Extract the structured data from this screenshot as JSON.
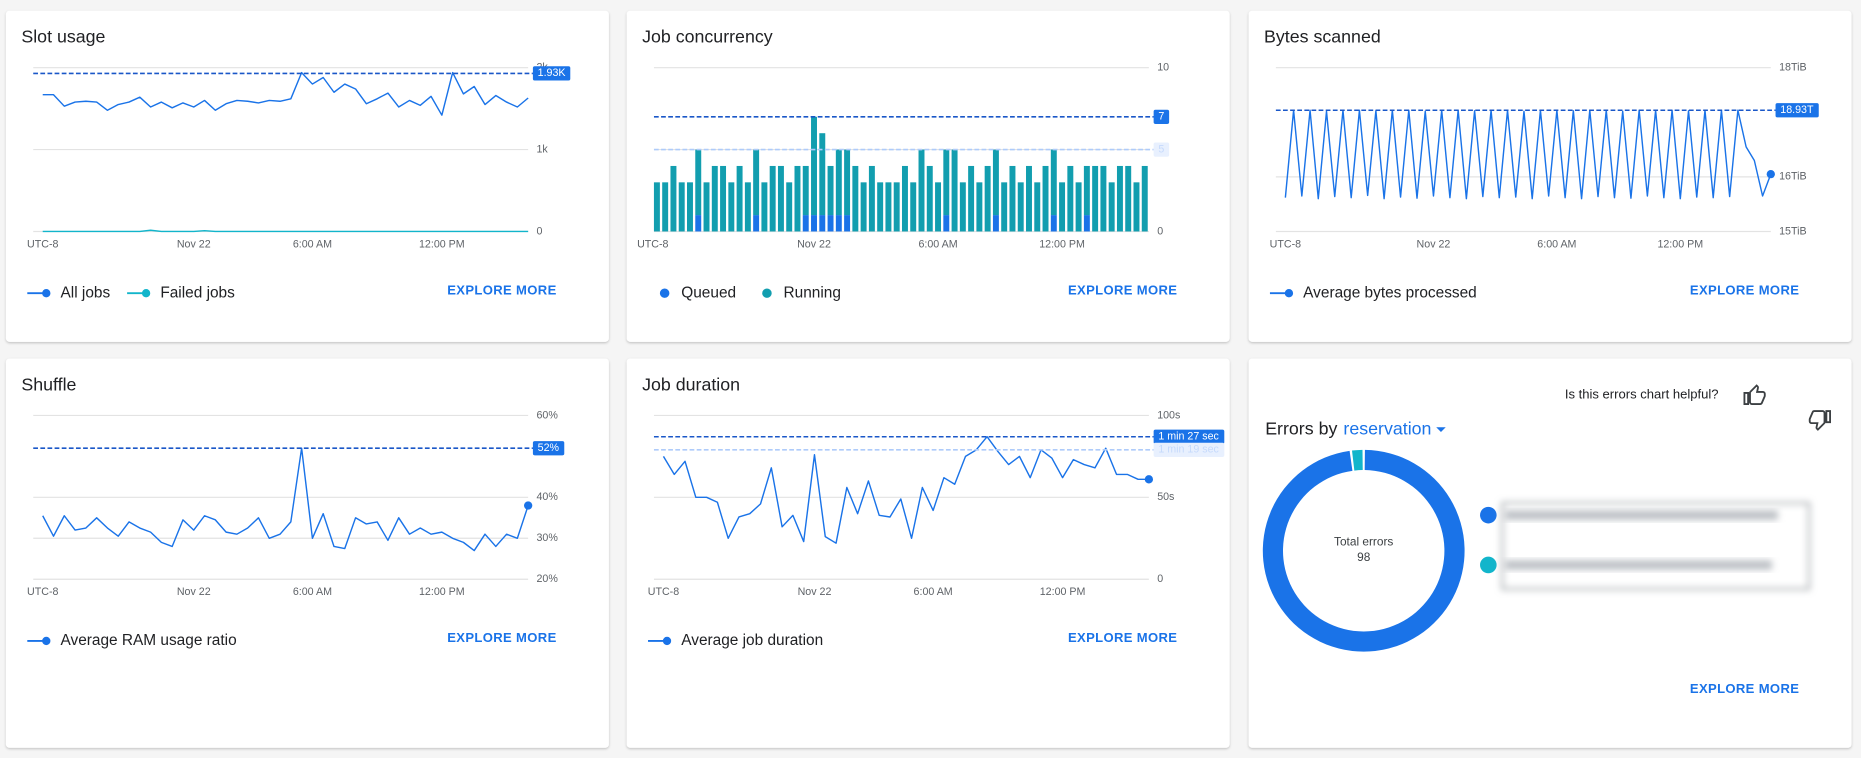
{
  "chart_data": [
    {
      "type": "line",
      "title": "Slot usage",
      "ylim": [
        0,
        2000
      ],
      "yticks": [
        0,
        {
          "value": 1000,
          "label": "1k"
        },
        {
          "value": 2000,
          "label": "2k"
        }
      ],
      "xlim": [
        0,
        45
      ],
      "xticks": [
        {
          "value": 0,
          "label": "UTC-8"
        },
        {
          "value": 14,
          "label": "Nov 22"
        },
        {
          "value": 25,
          "label": "6:00 AM"
        },
        {
          "value": 37,
          "label": "12:00 PM"
        }
      ],
      "grid": true,
      "references": [
        {
          "value": 1930,
          "label": "1.93K",
          "style": "dark"
        }
      ],
      "series": [
        {
          "name": "All jobs",
          "color": "#1a73e8",
          "values": [
            1670,
            1670,
            1530,
            1580,
            1590,
            1580,
            1480,
            1550,
            1580,
            1640,
            1520,
            1580,
            1510,
            1570,
            1520,
            1600,
            1480,
            1560,
            1600,
            1590,
            1570,
            1600,
            1590,
            1620,
            1940,
            1800,
            1880,
            1700,
            1800,
            1740,
            1560,
            1620,
            1690,
            1520,
            1600,
            1540,
            1650,
            1420,
            1940,
            1680,
            1770,
            1550,
            1660,
            1580,
            1520,
            1630
          ]
        },
        {
          "name": "Failed jobs",
          "color": "#12b5cb",
          "values": [
            0,
            0,
            0,
            0,
            0,
            0,
            0,
            0,
            0,
            0,
            15,
            0,
            0,
            0,
            0,
            10,
            0,
            0,
            0,
            0,
            0,
            0,
            0,
            0,
            0,
            0,
            0,
            0,
            0,
            0,
            0,
            0,
            0,
            0,
            0,
            0,
            0,
            0,
            0,
            0,
            0,
            0,
            0,
            0,
            0,
            0
          ]
        }
      ],
      "action": "EXPLORE MORE"
    },
    {
      "type": "bar",
      "title": "Job concurrency",
      "stacked": true,
      "ylim": [
        0,
        10
      ],
      "yticks": [
        0,
        5,
        10
      ],
      "xlim": [
        0,
        60
      ],
      "xticks": [
        {
          "value": 0,
          "label": "UTC-8"
        },
        {
          "value": 19.5,
          "label": "Nov 22"
        },
        {
          "value": 34.5,
          "label": "6:00 AM"
        },
        {
          "value": 49.5,
          "label": "12:00 PM"
        }
      ],
      "grid": true,
      "references": [
        {
          "value": 7,
          "style": "dark"
        },
        {
          "value": 5,
          "style": "light"
        }
      ],
      "series": [
        {
          "name": "Queued",
          "color": "#1a73e8",
          "values": [
            0,
            0,
            0,
            0,
            0,
            1,
            0,
            0,
            0,
            0,
            0,
            0,
            1,
            0,
            0,
            0,
            0,
            0,
            1,
            1,
            1,
            1,
            1,
            1,
            0,
            0,
            0,
            0,
            0,
            0,
            0,
            0,
            0,
            0,
            0,
            1,
            0,
            0,
            0,
            0,
            0,
            1,
            0,
            0,
            0,
            0,
            0,
            0,
            1,
            0,
            0,
            0,
            1,
            0,
            0,
            0,
            0,
            0,
            0,
            0
          ]
        },
        {
          "name": "Running",
          "color": "#129eaf",
          "values": [
            3,
            3,
            4,
            3,
            3,
            4,
            3,
            4,
            4,
            3,
            4,
            3,
            4,
            3,
            4,
            4,
            3,
            4,
            3,
            6,
            5,
            3,
            4,
            4,
            4,
            3,
            4,
            3,
            3,
            3,
            4,
            3,
            5,
            4,
            3,
            4,
            5,
            3,
            4,
            3,
            4,
            4,
            3,
            4,
            3,
            4,
            3,
            4,
            4,
            3,
            4,
            3,
            3,
            4,
            4,
            3,
            4,
            4,
            3,
            4
          ]
        }
      ],
      "action": "EXPLORE MORE"
    },
    {
      "type": "line",
      "title": "Bytes scanned",
      "ylim": [
        15,
        18
      ],
      "yticks": [
        {
          "value": 15,
          "label": "15TiB"
        },
        {
          "value": 16,
          "label": "16TiB"
        },
        {
          "value": 18,
          "label": "18TiB"
        }
      ],
      "xlim": [
        0,
        59
      ],
      "xticks": [
        {
          "value": 0,
          "label": "UTC-8"
        },
        {
          "value": 18,
          "label": "Nov 22"
        },
        {
          "value": 33,
          "label": "6:00 AM"
        },
        {
          "value": 48,
          "label": "12:00 PM"
        }
      ],
      "grid": true,
      "end_marker": true,
      "references": [
        {
          "value": 17.22,
          "label": "18.93T",
          "style": "dark"
        }
      ],
      "series": [
        {
          "name": "Average bytes processed",
          "color": "#1a73e8",
          "values": [
            15.62,
            17.22,
            15.65,
            17.22,
            15.6,
            17.2,
            15.64,
            17.22,
            15.62,
            17.22,
            15.66,
            17.21,
            15.6,
            17.22,
            15.63,
            17.22,
            15.61,
            17.2,
            15.65,
            17.22,
            15.62,
            17.22,
            15.6,
            17.21,
            15.64,
            17.22,
            15.62,
            17.22,
            15.63,
            17.2,
            15.6,
            17.22,
            15.65,
            17.22,
            15.62,
            17.21,
            15.6,
            17.22,
            15.64,
            17.22,
            15.62,
            17.2,
            15.61,
            17.22,
            15.65,
            17.22,
            15.62,
            17.22,
            15.6,
            17.21,
            15.63,
            17.22,
            15.62,
            17.22,
            15.64,
            17.22,
            16.55,
            16.3,
            15.65,
            16.05
          ]
        }
      ],
      "action": "EXPLORE MORE"
    },
    {
      "type": "line",
      "title": "Shuffle",
      "ylim": [
        20,
        60
      ],
      "yticks": [
        {
          "value": 20,
          "label": "20%"
        },
        {
          "value": 30,
          "label": "30%"
        },
        {
          "value": 40,
          "label": "40%"
        },
        {
          "value": 60,
          "label": "60%"
        }
      ],
      "xlim": [
        0,
        45
      ],
      "xticks": [
        {
          "value": 0,
          "label": "UTC-8"
        },
        {
          "value": 14,
          "label": "Nov 22"
        },
        {
          "value": 25,
          "label": "6:00 AM"
        },
        {
          "value": 37,
          "label": "12:00 PM"
        }
      ],
      "grid": true,
      "end_marker": true,
      "references": [
        {
          "value": 52,
          "label": "52%",
          "style": "dark"
        }
      ],
      "series": [
        {
          "name": "Average RAM usage ratio",
          "color": "#1a73e8",
          "values": [
            35.5,
            30.5,
            35.5,
            32,
            32.5,
            35,
            32.5,
            30.5,
            34,
            32.5,
            31.5,
            29,
            28,
            34.5,
            32,
            35.5,
            34.5,
            31.5,
            31,
            32.5,
            35,
            30,
            31,
            34,
            52,
            30,
            36,
            28,
            27.5,
            35,
            33.5,
            34,
            29.5,
            35,
            31,
            32.5,
            31,
            31.5,
            30,
            29,
            27,
            31,
            28,
            31,
            30,
            38
          ]
        }
      ],
      "action": "EXPLORE MORE"
    },
    {
      "type": "line",
      "title": "Job duration",
      "ylim": [
        0,
        100
      ],
      "yticks": [
        0,
        {
          "value": 50,
          "label": "50s"
        },
        {
          "value": 100,
          "label": "100s"
        }
      ],
      "xlim": [
        0,
        45
      ],
      "xticks": [
        {
          "value": 0,
          "label": "UTC-8"
        },
        {
          "value": 14,
          "label": "Nov 22"
        },
        {
          "value": 25,
          "label": "6:00 AM"
        },
        {
          "value": 37,
          "label": "12:00 PM"
        }
      ],
      "grid": true,
      "end_marker": true,
      "references": [
        {
          "value": 87,
          "label": "1 min 27 sec",
          "style": "dark"
        },
        {
          "value": 79,
          "label": "1 min 19 sec",
          "style": "light"
        }
      ],
      "series": [
        {
          "name": "Average job duration",
          "color": "#1a73e8",
          "values": [
            75,
            64,
            72,
            50,
            50,
            47,
            25,
            38,
            40,
            46,
            68,
            32,
            39,
            23,
            76,
            26,
            22,
            56,
            40,
            60,
            39,
            38,
            49,
            25,
            56,
            42,
            62,
            58,
            75,
            79,
            87,
            78,
            70,
            75,
            62,
            79,
            74,
            62,
            73,
            70,
            68,
            80,
            64,
            64,
            61,
            61
          ]
        }
      ],
      "action": "EXPLORE MORE"
    },
    {
      "type": "donut",
      "title": "Errors by",
      "dropdown": "reservation",
      "feedback": "Is this errors chart helpful?",
      "center_label": "Total errors",
      "total": 98,
      "values": [
        96,
        2
      ],
      "colors": [
        "#1a73e8",
        "#12b5cb"
      ],
      "action": "EXPLORE MORE"
    }
  ]
}
